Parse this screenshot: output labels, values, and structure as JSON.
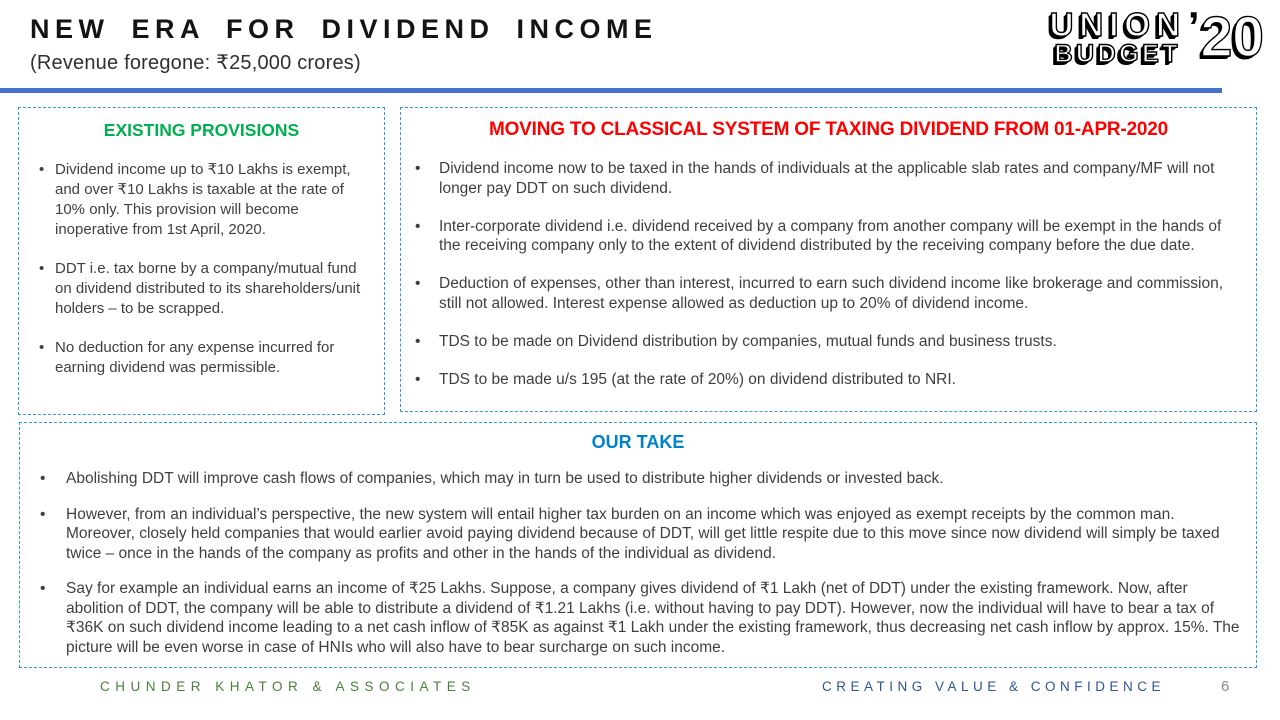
{
  "ui": {
    "bullet_char": "•"
  },
  "header": {
    "title": "NEW ERA FOR DIVIDEND INCOME",
    "subtitle": "(Revenue foregone: ₹25,000 crores)"
  },
  "logo": {
    "union": "UNION",
    "budget": "BUDGET",
    "apostrophe": "’",
    "year": "20"
  },
  "boxes": {
    "existing": {
      "heading": "EXISTING PROVISIONS",
      "heading_color": "#00B050",
      "bullets": [
        "Dividend income up to ₹10 Lakhs is exempt, and over ₹10 Lakhs is taxable at the rate of 10% only. This provision will become inoperative from 1st April, 2020.",
        "DDT i.e. tax borne by a company/mutual fund on dividend distributed to its shareholders/unit holders – to be scrapped.",
        "No deduction for any expense incurred for earning dividend was permissible."
      ]
    },
    "classical": {
      "heading": "MOVING TO CLASSICAL SYSTEM OF TAXING DIVIDEND FROM 01-APR-2020",
      "heading_color": "#FF0000",
      "bullets": [
        "Dividend income now to be taxed in the hands of individuals at the applicable slab rates and company/MF will not longer pay DDT on such dividend.",
        "Inter-corporate dividend i.e. dividend received by a company from another company will be exempt in the hands of the receiving company only to the extent of dividend distributed by the receiving company before the due date.",
        "Deduction of expenses, other than interest, incurred to earn such dividend income like brokerage and commission, still not allowed. Interest expense allowed as deduction up to 20% of dividend income.",
        "TDS to be made on Dividend distribution by companies, mutual funds and business trusts.",
        "TDS to be made u/s 195 (at the rate of 20%) on dividend distributed to NRI."
      ]
    },
    "our_take": {
      "heading": "OUR TAKE",
      "heading_color": "#0082CB",
      "bullets": [
        "Abolishing DDT will improve cash flows of companies, which may in turn be used to distribute higher dividends or invested back.",
        "However, from an individual’s perspective, the new system will entail higher tax burden on an income which was enjoyed as exempt receipts by the common man. Moreover, closely held companies that would earlier avoid paying dividend because of DDT, will get little respite due to this move since now dividend will simply be taxed twice – once in the hands of the company as profits and other in the hands of the individual as dividend.",
        "Say for example an individual earns an income of ₹25 Lakhs. Suppose, a company gives dividend of ₹1 Lakh (net of DDT) under the existing framework. Now, after abolition of DDT, the company will be able to distribute a dividend of ₹1.21 Lakhs (i.e. without having to pay DDT). However, now the individual will have to bear a tax of ₹36K on such dividend income leading to a net cash inflow of ₹85K as against ₹1 Lakh under the existing framework, thus decreasing net cash inflow by approx. 15%.  The picture will be even worse in case of HNIs who will also have to bear surcharge on such income."
      ]
    }
  },
  "footer": {
    "company": "CHUNDER KHATOR & ASSOCIATES",
    "tagline": "CREATING VALUE & CONFIDENCE",
    "page_number": "6"
  },
  "colors": {
    "accent_line": "#4472C4",
    "dashed_border": "#2E9BD6",
    "heading_green": "#00B050",
    "heading_red": "#FF0000",
    "heading_blue": "#0082CB",
    "footer_green": "#4E7E3C",
    "footer_blue": "#2F5496",
    "body_text": "#3F3F3F"
  }
}
